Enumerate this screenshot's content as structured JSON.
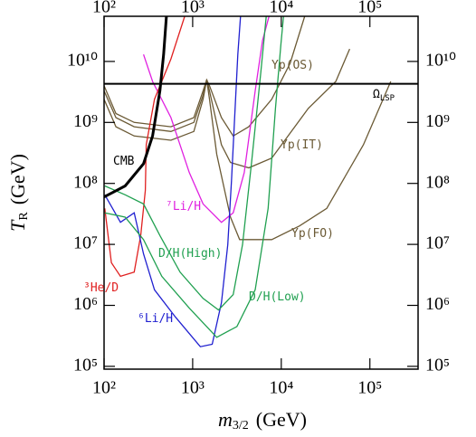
{
  "chart_data": {
    "type": "line",
    "x_label": {
      "symbol": "m",
      "subscript": "3/2",
      "unit": "(GeV)"
    },
    "y_label": {
      "symbol": "T",
      "subscript": "R",
      "unit": "(GeV)"
    },
    "xscale": "log",
    "yscale": "log",
    "xlim": [
      100,
      350000
    ],
    "ylim": [
      90000,
      55000000000
    ],
    "xticks": [
      {
        "value": 100,
        "label": "10²"
      },
      {
        "value": 1000,
        "label": "10³"
      },
      {
        "value": 10000,
        "label": "10⁴"
      },
      {
        "value": 100000,
        "label": "10⁵"
      }
    ],
    "yticks": [
      {
        "value": 100000,
        "label": "10⁵"
      },
      {
        "value": 1000000,
        "label": "10⁶"
      },
      {
        "value": 10000000,
        "label": "10⁷"
      },
      {
        "value": 100000000,
        "label": "10⁸"
      },
      {
        "value": 1000000000,
        "label": "10⁹"
      },
      {
        "value": 10000000000,
        "label": "10¹⁰"
      }
    ],
    "series": [
      {
        "name": "Yp(FO)",
        "color": "#6b5a35",
        "x": [
          100,
          136,
          219,
          569,
          1030,
          1310,
          1440,
          1550,
          1870,
          2670,
          3390,
          7800,
          16000,
          32600,
          84500,
          172000
        ],
        "values": [
          2400000000.0,
          850000000.0,
          600000000.0,
          510000000.0,
          710000000.0,
          2400000000.0,
          5000000000.0,
          2400000000.0,
          300000000.0,
          28000000.0,
          12000000.0,
          12000000.0,
          20000000.0,
          39000000.0,
          430000000.0,
          4700000000.0
        ]
      },
      {
        "name": "Yp(IT)",
        "color": "#6b5a35",
        "x": [
          100,
          136,
          219,
          569,
          1030,
          1310,
          1440,
          1550,
          2110,
          2670,
          4300,
          7800,
          20200,
          41300,
          59100
        ],
        "values": [
          3300000000.0,
          1200000000.0,
          850000000.0,
          710000000.0,
          1000000000.0,
          2800000000.0,
          5000000000.0,
          3300000000.0,
          430000000.0,
          220000000.0,
          180000000.0,
          260000000.0,
          1700000000.0,
          4700000000.0,
          16000000000.0
        ]
      },
      {
        "name": "Yp(OS)",
        "color": "#6b5a35",
        "x": [
          100,
          136,
          219,
          569,
          1030,
          1310,
          1440,
          1550,
          2110,
          2870,
          4300,
          7800,
          12600,
          18400
        ],
        "values": [
          4000000000.0,
          1400000000.0,
          1000000000.0,
          850000000.0,
          1200000000.0,
          3300000000.0,
          5000000000.0,
          4000000000.0,
          1200000000.0,
          600000000.0,
          850000000.0,
          2400000000.0,
          9300000000.0,
          55000000000.0
        ]
      },
      {
        "name": "⁷Li/H",
        "color": "#e020e0",
        "x": [
          279,
          353,
          569,
          916,
          1310,
          2110,
          2870,
          3820,
          5080,
          6150,
          7270
        ],
        "values": [
          13000000000.0,
          4700000000.0,
          1200000000.0,
          150000000.0,
          46000000.0,
          23000000.0,
          33000000.0,
          150000000.0,
          3300000000.0,
          22000000000.0,
          55000000000.0
        ]
      },
      {
        "name": "³He/D",
        "color": "#e02020",
        "x": [
          102,
          121,
          153,
          219,
          259,
          292,
          299,
          371,
          569,
          813
        ],
        "values": [
          39000000.0,
          5000000.0,
          3000000.0,
          3500000.0,
          14000000.0,
          77000000.0,
          430000000.0,
          2400000000.0,
          11000000000.0,
          55000000000.0
        ]
      },
      {
        "name": "⁶Li/H",
        "color": "#2020d0",
        "x": [
          102,
          153,
          219,
          279,
          371,
          641,
          1220,
          1660,
          2110,
          2490,
          2740,
          3010,
          3230,
          3470
        ],
        "values": [
          65000000.0,
          23000000.0,
          33000000.0,
          7000000.0,
          1800000.0,
          640000.0,
          210000.0,
          230000.0,
          1100000.0,
          9900000.0,
          110000000.0,
          1700000000.0,
          13000000000.0,
          55000000000.0
        ]
      },
      {
        "name": "D/H(High)",
        "color": "#20a050",
        "x": [
          102,
          173,
          279,
          427,
          721,
          1310,
          1960,
          2870,
          3650,
          4620,
          5870,
          6770
        ],
        "values": [
          91000000.0,
          65000000.0,
          46000000.0,
          14000000.0,
          3500000.0,
          1300000.0,
          840000.0,
          1500000.0,
          9900000.0,
          220000000.0,
          6600000000.0,
          55000000000.0
        ]
      },
      {
        "name": "D/H(Low)",
        "color": "#20a050",
        "x": [
          102,
          173,
          279,
          448,
          916,
          1870,
          3160,
          5080,
          7100,
          8590,
          9910,
          10600
        ],
        "values": [
          33000000.0,
          28000000.0,
          12000000.0,
          3000000.0,
          900000.0,
          300000.0,
          450000.0,
          1800000.0,
          39000000.0,
          1700000000.0,
          19000000000.0,
          55000000000.0
        ]
      },
      {
        "name": "CMB",
        "color": "#000000",
        "width": 3,
        "x": [
          100,
          173,
          279,
          353,
          427,
          470,
          505
        ],
        "values": [
          60000000.0,
          91000000.0,
          210000000.0,
          600000000.0,
          3300000000.0,
          13000000000.0,
          55000000000.0
        ]
      },
      {
        "name": "Ω",
        "name_sub": "LSP",
        "color": "#000000",
        "width": 2,
        "x": [
          100,
          350000
        ],
        "values": [
          4300000000.0,
          4300000000.0
        ]
      }
    ]
  }
}
